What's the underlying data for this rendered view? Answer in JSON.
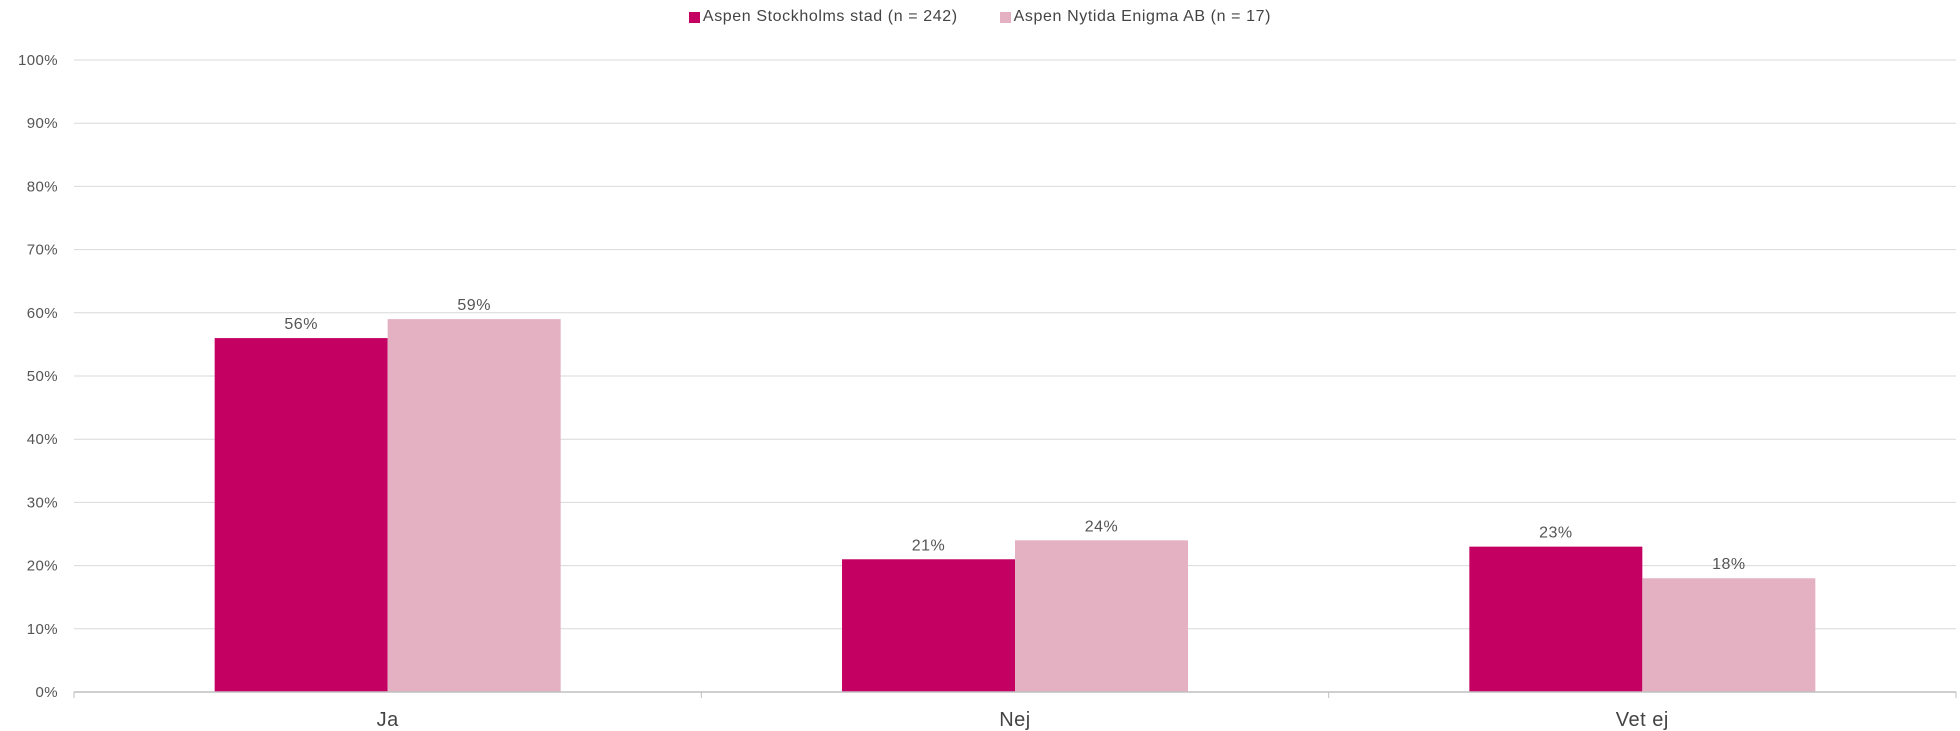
{
  "chart_data": {
    "type": "bar",
    "categories": [
      "Ja",
      "Nej",
      "Vet ej"
    ],
    "series": [
      {
        "name": "Aspen Stockholms stad (n = 242)",
        "values": [
          56,
          21,
          23
        ],
        "labels": [
          "56%",
          "21%",
          "23%"
        ],
        "color": "#c40062"
      },
      {
        "name": "Aspen Nytida Enigma AB (n = 17)",
        "values": [
          59,
          24,
          18
        ],
        "labels": [
          "59%",
          "24%",
          "18%"
        ],
        "color": "#e3b1c2"
      }
    ],
    "yticks": [
      "0%",
      "10%",
      "20%",
      "30%",
      "40%",
      "50%",
      "60%",
      "70%",
      "80%",
      "90%",
      "100%"
    ],
    "ylim": [
      0,
      100
    ],
    "grid": true,
    "legend_position": "top-center",
    "gridline_color": "#d9d9d9",
    "axis_color": "#bfbfbf"
  }
}
